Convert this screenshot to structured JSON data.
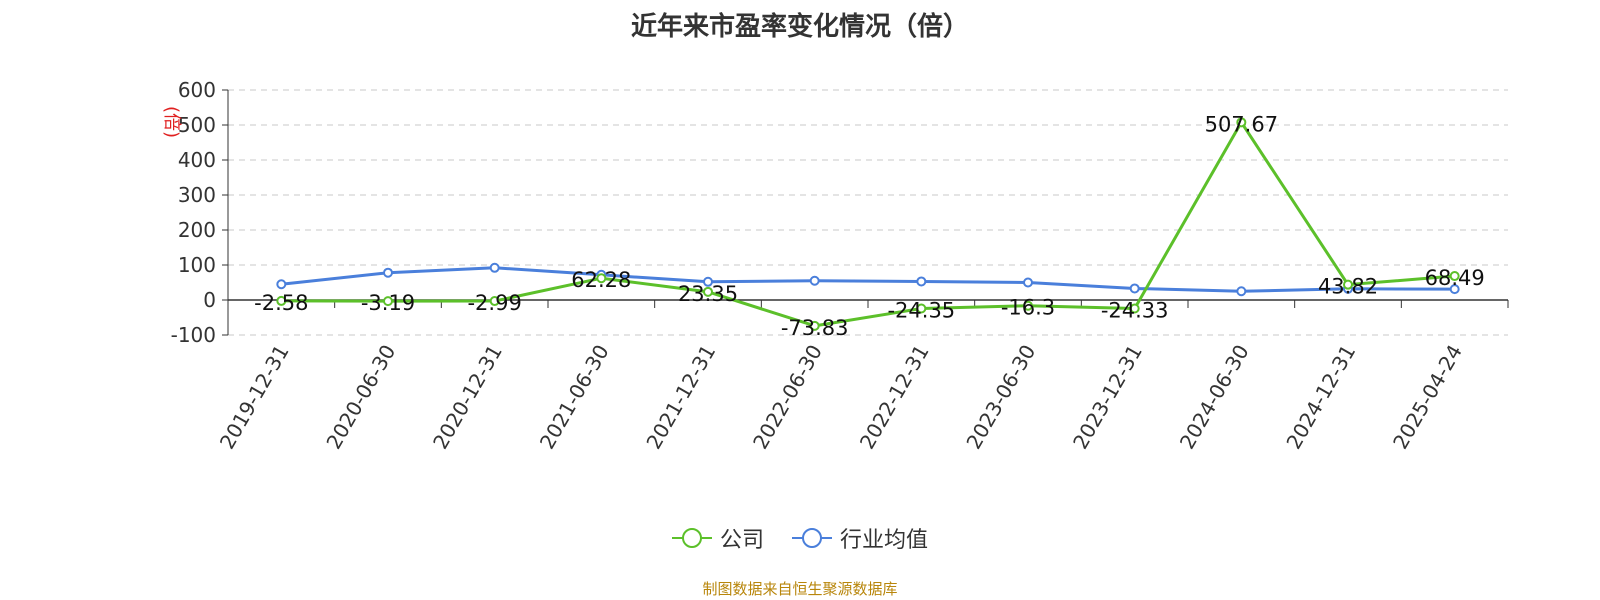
{
  "chart_data": {
    "type": "line",
    "title": "近年来市盈率变化情况（倍）",
    "ylabel": "(倍)",
    "xlabel": "",
    "ylim": [
      -100,
      600
    ],
    "yticks": [
      -100,
      0,
      100,
      200,
      300,
      400,
      500,
      600
    ],
    "grid": true,
    "legend_position": "bottom",
    "categories": [
      "2019-12-31",
      "2020-06-30",
      "2020-12-31",
      "2021-06-30",
      "2021-12-31",
      "2022-06-30",
      "2022-12-31",
      "2023-06-30",
      "2023-12-31",
      "2024-06-30",
      "2024-12-31",
      "2025-04-24"
    ],
    "series": [
      {
        "name": "公司",
        "color": "#5cc02a",
        "values": [
          -2.58,
          -3.19,
          -2.99,
          62.28,
          23.35,
          -73.83,
          -24.35,
          -16.3,
          -24.33,
          507.67,
          43.82,
          68.49
        ],
        "labels": [
          "-2.58",
          "-3.19",
          "-2.99",
          "62.28",
          "23.35",
          "-73.83",
          "-24.35",
          "-16.3",
          "-24.33",
          "507.67",
          "43.82",
          "68.49"
        ]
      },
      {
        "name": "行业均值",
        "color": "#4a7fdb",
        "values": [
          45,
          78,
          92,
          72,
          52,
          55,
          53,
          50,
          33,
          25,
          32,
          31
        ]
      }
    ]
  },
  "source": "制图数据来自恒生聚源数据库"
}
